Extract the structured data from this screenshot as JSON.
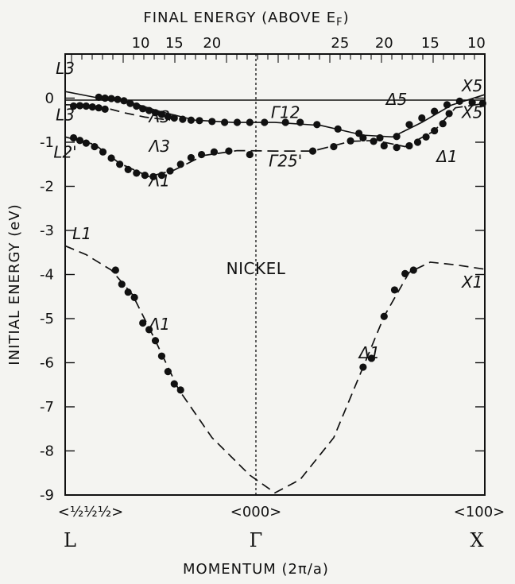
{
  "chart_data": {
    "type": "scatter",
    "title": "",
    "xlabel": "MOMENTUM (2π/a)",
    "ylabel": "INITIAL ENERGY (eV)",
    "top_axis_label": "FINAL ENERGY (ABOVE E",
    "top_axis_label_sub": "F",
    "top_axis_label_close": ")",
    "ylim": [
      -9,
      1
    ],
    "yticks": [
      "0",
      "-1",
      "-2",
      "-3",
      "-4",
      "-5",
      "-6",
      "-7",
      "-8",
      "-9"
    ],
    "top_ticks_left": [
      "10",
      "15",
      "20"
    ],
    "top_ticks_right": [
      "25",
      "20",
      "15",
      "10"
    ],
    "bottom_ticks": [
      "<½½½>",
      "<000>",
      "<100>"
    ],
    "bottom_symbols": [
      "L",
      "Γ",
      "X"
    ],
    "material": "NICKEL",
    "band_labels": [
      {
        "text": "L3",
        "x": -1.0,
        "y": 0.55
      },
      {
        "text": "L3",
        "x": -1.0,
        "y": -0.5
      },
      {
        "text": "L2'",
        "x": -1.0,
        "y": -1.35
      },
      {
        "text": "L1",
        "x": -0.92,
        "y": -3.2
      },
      {
        "text": "Λ3",
        "x": -0.55,
        "y": -0.55
      },
      {
        "text": "Λ3",
        "x": -0.55,
        "y": -1.22
      },
      {
        "text": "Λ1",
        "x": -0.55,
        "y": -2.0
      },
      {
        "text": "Λ1",
        "x": -0.55,
        "y": -5.25
      },
      {
        "text": "Γ12",
        "x": 0.05,
        "y": -0.45
      },
      {
        "text": "Γ25'",
        "x": 0.05,
        "y": -1.55
      },
      {
        "text": "Δ5",
        "x": 0.58,
        "y": -0.15
      },
      {
        "text": "Δ1",
        "x": 0.82,
        "y": -1.45
      },
      {
        "text": "Δ1",
        "x": 0.45,
        "y": -5.9
      },
      {
        "text": "X5",
        "x": 0.94,
        "y": 0.15
      },
      {
        "text": "X5",
        "x": 0.94,
        "y": -0.45
      },
      {
        "text": "X1",
        "x": 0.94,
        "y": -4.3
      }
    ],
    "series": [
      {
        "values": [
          [
            -0.84,
            0.02
          ],
          [
            -0.81,
            0.0
          ],
          [
            -0.78,
            -0.01
          ],
          [
            -0.75,
            -0.03
          ],
          [
            -0.72,
            -0.06
          ],
          [
            -0.69,
            -0.12
          ],
          [
            -0.66,
            -0.18
          ],
          [
            -0.63,
            -0.24
          ],
          [
            -0.6,
            -0.28
          ],
          [
            -0.57,
            -0.33
          ],
          [
            -0.54,
            -0.37
          ],
          [
            -0.51,
            -0.42
          ],
          [
            -0.48,
            -0.45
          ],
          [
            -0.44,
            -0.48
          ],
          [
            -0.4,
            -0.5
          ],
          [
            -0.36,
            -0.51
          ],
          [
            -0.3,
            -0.53
          ],
          [
            -0.24,
            -0.55
          ],
          [
            -0.18,
            -0.55
          ],
          [
            -0.12,
            -0.55
          ],
          [
            -0.05,
            -0.55
          ],
          [
            0.05,
            -0.55
          ],
          [
            0.12,
            -0.55
          ],
          [
            0.2,
            -0.6
          ],
          [
            0.3,
            -0.7
          ],
          [
            0.4,
            -0.8
          ],
          [
            0.5,
            -0.9
          ],
          [
            0.58,
            -0.87
          ],
          [
            0.64,
            -0.6
          ],
          [
            0.7,
            -0.45
          ],
          [
            0.76,
            -0.3
          ],
          [
            0.82,
            -0.15
          ],
          [
            0.88,
            -0.07
          ],
          [
            0.94,
            -0.1
          ],
          [
            0.99,
            -0.12
          ]
        ]
      },
      {
        "values": [
          [
            -0.96,
            -0.18
          ],
          [
            -0.93,
            -0.17
          ],
          [
            -0.9,
            -0.18
          ],
          [
            -0.87,
            -0.2
          ],
          [
            -0.84,
            -0.22
          ],
          [
            -0.81,
            -0.25
          ]
        ]
      },
      {
        "values": [
          [
            -0.96,
            -0.9
          ],
          [
            -0.93,
            -0.96
          ],
          [
            -0.9,
            -1.02
          ],
          [
            -0.86,
            -1.1
          ],
          [
            -0.82,
            -1.22
          ],
          [
            -0.78,
            -1.36
          ],
          [
            -0.74,
            -1.5
          ],
          [
            -0.7,
            -1.62
          ],
          [
            -0.66,
            -1.7
          ],
          [
            -0.62,
            -1.75
          ],
          [
            -0.58,
            -1.78
          ],
          [
            -0.54,
            -1.75
          ],
          [
            -0.5,
            -1.65
          ],
          [
            -0.45,
            -1.5
          ],
          [
            -0.4,
            -1.35
          ],
          [
            -0.35,
            -1.28
          ],
          [
            -0.29,
            -1.22
          ],
          [
            -0.22,
            -1.2
          ],
          [
            -0.12,
            -1.28
          ],
          [
            0.18,
            -1.2
          ],
          [
            0.28,
            -1.1
          ],
          [
            0.36,
            -0.97
          ],
          [
            0.42,
            -0.9
          ],
          [
            0.47,
            -0.98
          ],
          [
            0.52,
            -1.08
          ],
          [
            0.58,
            -1.12
          ],
          [
            0.64,
            -1.08
          ],
          [
            0.68,
            -1.0
          ],
          [
            0.72,
            -0.88
          ],
          [
            0.76,
            -0.74
          ],
          [
            0.8,
            -0.58
          ],
          [
            0.83,
            -0.35
          ]
        ]
      },
      {
        "values": [
          [
            -0.76,
            -3.9
          ],
          [
            -0.73,
            -4.22
          ],
          [
            -0.7,
            -4.4
          ],
          [
            -0.67,
            -4.52
          ],
          [
            -0.63,
            -5.1
          ],
          [
            -0.6,
            -5.25
          ],
          [
            -0.57,
            -5.5
          ],
          [
            -0.54,
            -5.85
          ],
          [
            -0.51,
            -6.2
          ],
          [
            -0.48,
            -6.48
          ],
          [
            -0.45,
            -6.62
          ],
          [
            0.42,
            -6.1
          ],
          [
            0.46,
            -5.9
          ],
          [
            0.52,
            -4.95
          ],
          [
            0.57,
            -4.35
          ],
          [
            0.62,
            -3.98
          ],
          [
            0.66,
            -3.9
          ]
        ]
      }
    ]
  }
}
